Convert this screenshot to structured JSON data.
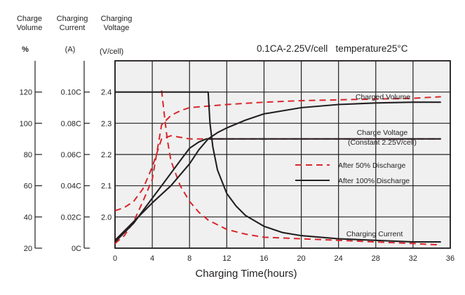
{
  "chart_data": {
    "type": "line",
    "headers": {
      "charge_volume": [
        "Charge",
        "Volume"
      ],
      "charging_current": [
        "Charging",
        "Current"
      ],
      "charging_voltage": [
        "Charging",
        "Voltage"
      ]
    },
    "units": {
      "charge_volume": "%",
      "charging_current": "(A)",
      "charging_voltage": "(V/cell)"
    },
    "conditions": "0.1CA-2.25V/cell   temperature25°C",
    "xlabel": "Charging Time(hours)",
    "x_ticks": [
      "0",
      "4",
      "8",
      "12",
      "16",
      "20",
      "24",
      "28",
      "32",
      "36"
    ],
    "xlim": [
      0,
      36
    ],
    "grid": true,
    "axes": {
      "charge_volume": {
        "ticks": [
          "120",
          "100",
          "80",
          "60",
          "40",
          "20"
        ],
        "range": [
          20,
          140
        ]
      },
      "charging_current": {
        "ticks": [
          "0.10C",
          "0.08C",
          "0.06C",
          "0.04C",
          "0.02C",
          "0C"
        ],
        "range": [
          0,
          0.12
        ]
      },
      "charging_voltage": {
        "ticks": [
          "2.4",
          "2.3",
          "2.2",
          "2.1",
          "2.0"
        ],
        "range": [
          1.9,
          2.5
        ]
      }
    },
    "curve_labels": {
      "charged_volume": "Charged Volume",
      "charge_voltage": [
        "Charge Voltage",
        "(Constant 2.25V/cell)"
      ],
      "charging_current": "Charging Current"
    },
    "legend": {
      "placement": "center-right",
      "entries": [
        {
          "name": "After 50% Discharge",
          "style": "dashed",
          "color": "#d9262b"
        },
        {
          "name": "After 100% Discharge",
          "style": "solid",
          "color": "#231f20"
        }
      ]
    },
    "series": [
      {
        "group": "After 50% Discharge",
        "quantity": "Charging Voltage (V/cell)",
        "points": [
          [
            0,
            2.02
          ],
          [
            1,
            2.03
          ],
          [
            2,
            2.05
          ],
          [
            3,
            2.09
          ],
          [
            4,
            2.16
          ],
          [
            5,
            2.25
          ],
          [
            6,
            2.26
          ],
          [
            7,
            2.255
          ],
          [
            8,
            2.25
          ],
          [
            9,
            2.25
          ],
          [
            10,
            2.25
          ],
          [
            12,
            2.25
          ],
          [
            16,
            2.25
          ],
          [
            20,
            2.25
          ],
          [
            24,
            2.25
          ],
          [
            28,
            2.25
          ],
          [
            32,
            2.25
          ],
          [
            35,
            2.25
          ]
        ]
      },
      {
        "group": "After 50% Discharge",
        "quantity": "Charge Volume (%)",
        "points": [
          [
            0,
            23
          ],
          [
            1,
            28
          ],
          [
            2,
            37
          ],
          [
            3,
            50
          ],
          [
            4,
            64
          ],
          [
            5,
            99
          ],
          [
            6,
            105
          ],
          [
            7,
            108
          ],
          [
            8,
            110
          ],
          [
            10,
            111
          ],
          [
            12,
            112
          ],
          [
            16,
            113.5
          ],
          [
            20,
            114.5
          ],
          [
            24,
            115
          ],
          [
            28,
            115.5
          ],
          [
            32,
            116
          ],
          [
            35,
            117
          ]
        ]
      },
      {
        "group": "After 50% Discharge",
        "quantity": "Charging Current (A)",
        "points": [
          [
            5,
            0.101
          ],
          [
            5.3,
            0.085
          ],
          [
            5.6,
            0.07
          ],
          [
            6,
            0.056
          ],
          [
            7,
            0.04
          ],
          [
            8,
            0.03
          ],
          [
            9,
            0.023
          ],
          [
            10,
            0.018
          ],
          [
            12,
            0.012
          ],
          [
            14,
            0.009
          ],
          [
            16,
            0.007
          ],
          [
            20,
            0.006
          ],
          [
            24,
            0.005
          ],
          [
            28,
            0.004
          ],
          [
            32,
            0.003
          ],
          [
            35,
            0.002
          ]
        ]
      },
      {
        "group": "After 100% Discharge",
        "quantity": "Charging Voltage (V/cell)",
        "points": [
          [
            0,
            1.92
          ],
          [
            1,
            1.95
          ],
          [
            2,
            1.98
          ],
          [
            3,
            2.02
          ],
          [
            4,
            2.06
          ],
          [
            5,
            2.1
          ],
          [
            6,
            2.14
          ],
          [
            7,
            2.18
          ],
          [
            8,
            2.22
          ],
          [
            9,
            2.24
          ],
          [
            9.8,
            2.25
          ],
          [
            12,
            2.25
          ],
          [
            16,
            2.25
          ],
          [
            20,
            2.25
          ],
          [
            24,
            2.25
          ],
          [
            28,
            2.25
          ],
          [
            32,
            2.25
          ],
          [
            35,
            2.25
          ]
        ]
      },
      {
        "group": "After 100% Discharge",
        "quantity": "Charge Volume (%)",
        "points": [
          [
            0,
            25
          ],
          [
            2,
            37
          ],
          [
            4,
            49
          ],
          [
            6,
            60
          ],
          [
            8,
            74
          ],
          [
            9,
            83
          ],
          [
            10,
            90
          ],
          [
            11,
            94
          ],
          [
            12,
            97
          ],
          [
            14,
            102
          ],
          [
            16,
            106
          ],
          [
            20,
            110
          ],
          [
            24,
            112
          ],
          [
            28,
            113
          ],
          [
            32,
            113.5
          ],
          [
            35,
            113.5
          ]
        ]
      },
      {
        "group": "After 100% Discharge",
        "quantity": "Charging Current (A)",
        "points": [
          [
            0,
            0.1
          ],
          [
            10,
            0.1
          ],
          [
            10.2,
            0.08
          ],
          [
            10.5,
            0.065
          ],
          [
            11,
            0.05
          ],
          [
            12,
            0.035
          ],
          [
            13,
            0.027
          ],
          [
            14,
            0.021
          ],
          [
            16,
            0.014
          ],
          [
            18,
            0.01
          ],
          [
            20,
            0.008
          ],
          [
            24,
            0.006
          ],
          [
            28,
            0.005
          ],
          [
            32,
            0.004
          ],
          [
            35,
            0.004
          ]
        ]
      }
    ]
  }
}
